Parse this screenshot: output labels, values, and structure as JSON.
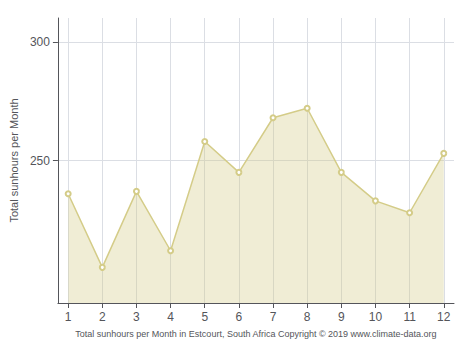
{
  "chart_data": {
    "type": "area",
    "xlabel": "Total sunhours per Month in Estcourt, South Africa Copyright © 2019 www.climate-data.org",
    "ylabel": "Total sunhours per Month",
    "x": [
      1,
      2,
      3,
      4,
      5,
      6,
      7,
      8,
      9,
      10,
      11,
      12
    ],
    "values": [
      236,
      205,
      237,
      212,
      258,
      245,
      268,
      272,
      245,
      233,
      228,
      253
    ],
    "color": "#D4CC88",
    "marker": "circle",
    "xlim": [
      0.7,
      12.3
    ],
    "xticks": [
      1,
      2,
      3,
      4,
      5,
      6,
      7,
      8,
      9,
      10,
      11,
      12
    ],
    "ylim": [
      190,
      310
    ],
    "yticks": [
      250,
      300
    ],
    "grid": true
  }
}
